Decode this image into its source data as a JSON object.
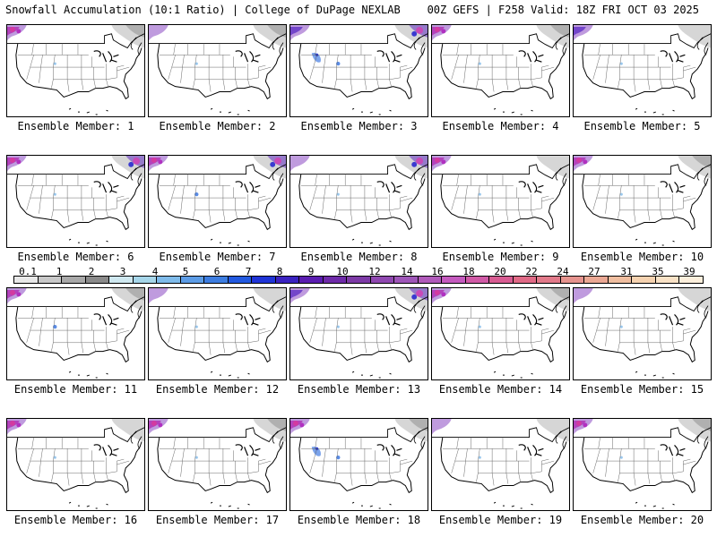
{
  "header": {
    "title": "Snowfall Accumulation (10:1 Ratio) | College of DuPage NEXLAB",
    "run_info": "00Z GEFS | F258 Valid: 18Z FRI OCT 03 2025"
  },
  "panels": [
    {
      "label": "Ensemble Member: 1",
      "snow": [
        {
          "type": "nw",
          "level": 3
        },
        {
          "type": "ne",
          "level": 2
        },
        {
          "type": "co",
          "level": 1
        }
      ]
    },
    {
      "label": "Ensemble Member: 2",
      "snow": [
        {
          "type": "nw",
          "level": 1
        },
        {
          "type": "ne",
          "level": 2
        },
        {
          "type": "co",
          "level": 1
        }
      ]
    },
    {
      "label": "Ensemble Member: 3",
      "snow": [
        {
          "type": "nw",
          "level": 2
        },
        {
          "type": "ne",
          "level": 3
        },
        {
          "type": "co",
          "level": 2
        },
        {
          "type": "mt",
          "level": 2
        }
      ]
    },
    {
      "label": "Ensemble Member: 4",
      "snow": [
        {
          "type": "nw",
          "level": 3
        },
        {
          "type": "ne",
          "level": 2
        },
        {
          "type": "co",
          "level": 1
        }
      ]
    },
    {
      "label": "Ensemble Member: 5",
      "snow": [
        {
          "type": "nw",
          "level": 2
        },
        {
          "type": "ne",
          "level": 1
        },
        {
          "type": "co",
          "level": 1
        }
      ]
    },
    {
      "label": "Ensemble Member: 6",
      "snow": [
        {
          "type": "nw",
          "level": 3
        },
        {
          "type": "ne",
          "level": 3
        },
        {
          "type": "co",
          "level": 1
        }
      ]
    },
    {
      "label": "Ensemble Member: 7",
      "snow": [
        {
          "type": "nw",
          "level": 3
        },
        {
          "type": "ne",
          "level": 3
        },
        {
          "type": "co",
          "level": 2
        }
      ]
    },
    {
      "label": "Ensemble Member: 8",
      "snow": [
        {
          "type": "nw",
          "level": 1
        },
        {
          "type": "ne",
          "level": 3
        },
        {
          "type": "co",
          "level": 1
        }
      ]
    },
    {
      "label": "Ensemble Member: 9",
      "snow": [
        {
          "type": "nw",
          "level": 3
        },
        {
          "type": "ne",
          "level": 1
        },
        {
          "type": "co",
          "level": 1
        }
      ]
    },
    {
      "label": "Ensemble Member: 10",
      "snow": [
        {
          "type": "nw",
          "level": 3
        },
        {
          "type": "ne",
          "level": 2
        },
        {
          "type": "co",
          "level": 1
        }
      ]
    },
    {
      "label": "Ensemble Member: 11",
      "snow": [
        {
          "type": "nw",
          "level": 3
        },
        {
          "type": "ne",
          "level": 2
        },
        {
          "type": "co",
          "level": 2
        }
      ]
    },
    {
      "label": "Ensemble Member: 12",
      "snow": [
        {
          "type": "nw",
          "level": 1
        },
        {
          "type": "ne",
          "level": 1
        },
        {
          "type": "co",
          "level": 1
        }
      ]
    },
    {
      "label": "Ensemble Member: 13",
      "snow": [
        {
          "type": "nw",
          "level": 2
        },
        {
          "type": "ne",
          "level": 3
        },
        {
          "type": "co",
          "level": 1
        }
      ]
    },
    {
      "label": "Ensemble Member: 14",
      "snow": [
        {
          "type": "nw",
          "level": 3
        },
        {
          "type": "ne",
          "level": 2
        },
        {
          "type": "co",
          "level": 1
        }
      ]
    },
    {
      "label": "Ensemble Member: 15",
      "snow": [
        {
          "type": "nw",
          "level": 1
        },
        {
          "type": "ne",
          "level": 1
        },
        {
          "type": "co",
          "level": 1
        }
      ]
    },
    {
      "label": "Ensemble Member: 16",
      "snow": [
        {
          "type": "nw",
          "level": 3
        },
        {
          "type": "ne",
          "level": 1
        },
        {
          "type": "co",
          "level": 1
        }
      ]
    },
    {
      "label": "Ensemble Member: 17",
      "snow": [
        {
          "type": "nw",
          "level": 3
        },
        {
          "type": "ne",
          "level": 2
        },
        {
          "type": "co",
          "level": 1
        }
      ]
    },
    {
      "label": "Ensemble Member: 18",
      "snow": [
        {
          "type": "nw",
          "level": 3
        },
        {
          "type": "ne",
          "level": 2
        },
        {
          "type": "co",
          "level": 2
        },
        {
          "type": "mt",
          "level": 2
        }
      ]
    },
    {
      "label": "Ensemble Member: 19",
      "snow": [
        {
          "type": "nw",
          "level": 1
        },
        {
          "type": "ne",
          "level": 1
        },
        {
          "type": "co",
          "level": 1
        }
      ]
    },
    {
      "label": "Ensemble Member: 20",
      "snow": [
        {
          "type": "nw",
          "level": 3
        },
        {
          "type": "ne",
          "level": 2
        },
        {
          "type": "co",
          "level": 1
        }
      ]
    }
  ],
  "colorbar": {
    "labels": [
      "0.1",
      "1",
      "2",
      "3",
      "4",
      "5",
      "6",
      "7",
      "8",
      "9",
      "10",
      "12",
      "14",
      "16",
      "18",
      "20",
      "22",
      "24",
      "27",
      "31",
      "35",
      "39"
    ],
    "colors": [
      "#e8e8e8",
      "#c8c8c8",
      "#a8a8a8",
      "#8a8a8a",
      "#cfe8f0",
      "#a6d6ea",
      "#7fbbea",
      "#5c9ce6",
      "#3d7de0",
      "#2259e0",
      "#1f34d6",
      "#3a22c0",
      "#5a1cb0",
      "#6e2aa8",
      "#7d3aa6",
      "#8f48b0",
      "#9e56b8",
      "#b05aba",
      "#c45abe",
      "#d05aa6",
      "#d85c92",
      "#e06a86",
      "#e27a8a",
      "#e6938e",
      "#eba894",
      "#f0bea0",
      "#f5d2b0",
      "#f9e2c6",
      "#fcefdc"
    ]
  }
}
